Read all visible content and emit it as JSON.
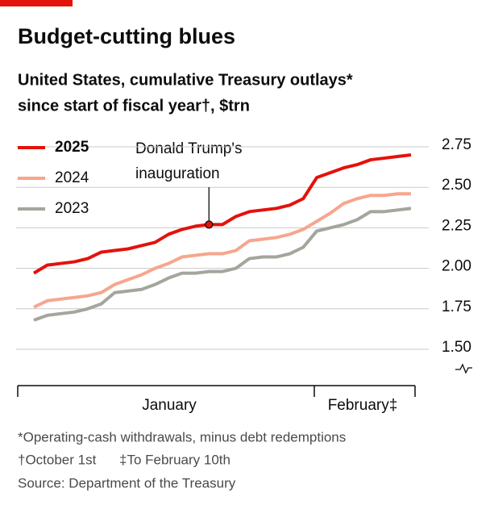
{
  "chart_data": {
    "type": "line",
    "title": "Budget-cutting blues",
    "subtitle": [
      "United States, cumulative Treasury outlays*",
      "since start of fiscal year†, $trn"
    ],
    "annotation": [
      "Donald Trump's",
      "inauguration"
    ],
    "xlabels": [
      "January",
      "February‡"
    ],
    "footnotes": [
      "*Operating-cash withdrawals, minus debt redemptions",
      "†October 1st",
      "‡To February 10th",
      "Source: Department of the Treasury"
    ],
    "ylim": [
      1.5,
      2.75
    ],
    "yticks": [
      {
        "value": 1.5,
        "label": "1.50"
      },
      1.75,
      {
        "value": 2,
        "label": "2.00"
      },
      2.25,
      {
        "value": 2.5,
        "label": "2.50"
      },
      {
        "value": 2.75,
        "label": "2.75"
      }
    ],
    "grid": true,
    "legend": "top-left",
    "series": [
      {
        "name": "2025",
        "color": "#e3120b",
        "values": [
          1.97,
          2.02,
          2.03,
          2.04,
          2.06,
          2.1,
          2.11,
          2.12,
          2.14,
          2.16,
          2.21,
          2.24,
          2.26,
          2.27,
          2.27,
          2.32,
          2.35,
          2.36,
          2.37,
          2.39,
          2.43,
          2.56,
          2.59,
          2.62,
          2.64,
          2.67,
          2.68,
          2.69,
          2.7
        ]
      },
      {
        "name": "2024",
        "color": "#f6a68e",
        "values": [
          1.76,
          1.8,
          1.81,
          1.82,
          1.83,
          1.85,
          1.9,
          1.93,
          1.96,
          2.0,
          2.03,
          2.07,
          2.08,
          2.09,
          2.09,
          2.11,
          2.17,
          2.18,
          2.19,
          2.21,
          2.24,
          2.29,
          2.34,
          2.4,
          2.43,
          2.45,
          2.45,
          2.46,
          2.46
        ]
      },
      {
        "name": "2023",
        "color": "#a3a69c",
        "values": [
          1.68,
          1.71,
          1.72,
          1.73,
          1.75,
          1.78,
          1.85,
          1.86,
          1.87,
          1.9,
          1.94,
          1.97,
          1.97,
          1.98,
          1.98,
          2.0,
          2.06,
          2.07,
          2.07,
          2.09,
          2.13,
          2.23,
          2.25,
          2.27,
          2.3,
          2.35,
          2.35,
          2.36,
          2.37
        ]
      }
    ]
  }
}
